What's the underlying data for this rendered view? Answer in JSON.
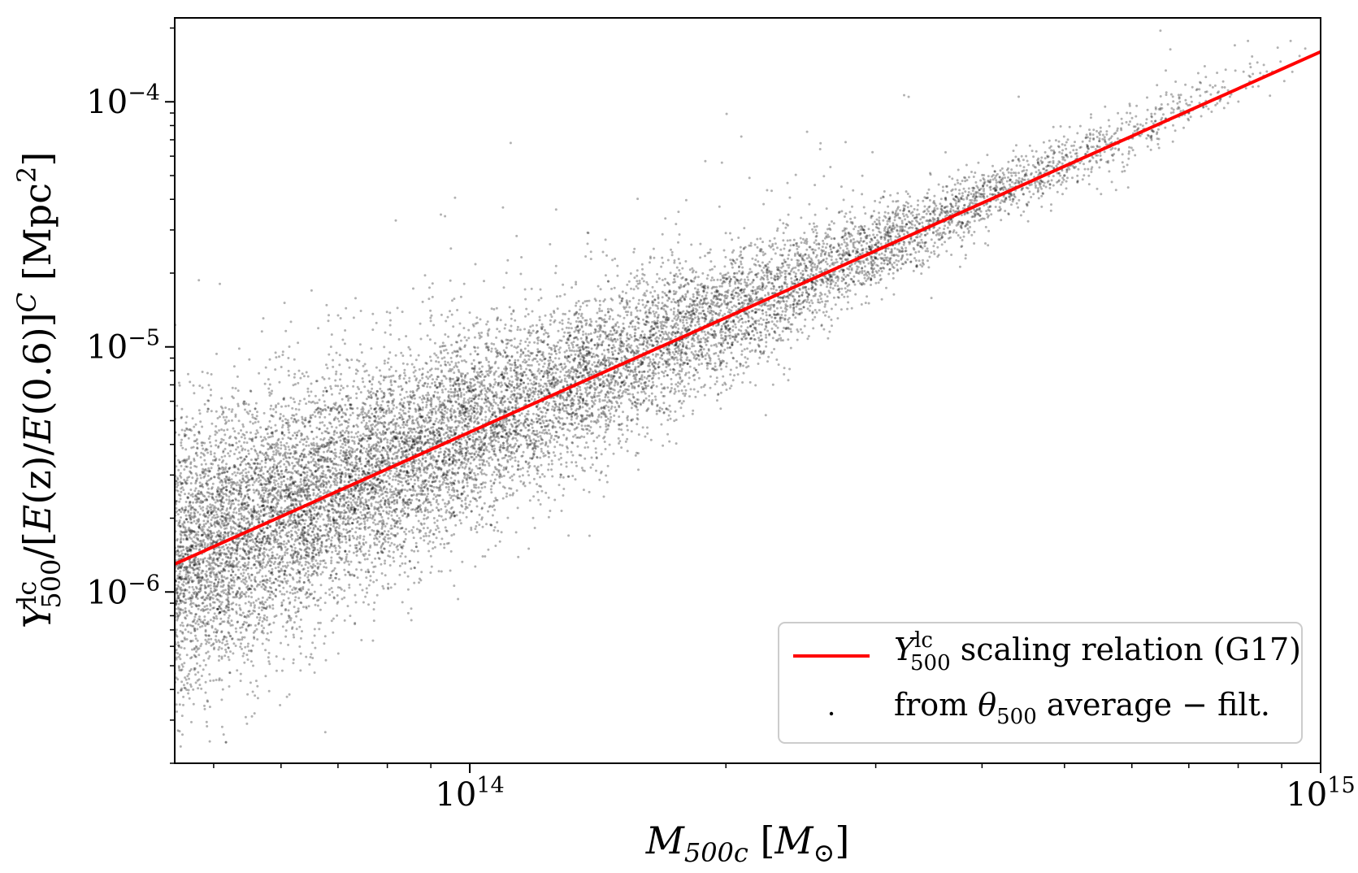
{
  "chart_data": {
    "type": "scatter",
    "xlabel": "M500c [M⊙]",
    "ylabel": "Y500^lc/[E(z)/E(0.6)]^C [Mpc^2]",
    "xscale": "log",
    "yscale": "log",
    "xlim": [
      45000000000000.0,
      1000000000000000.0
    ],
    "ylim": [
      2e-07,
      0.00022
    ],
    "x_ticks": [
      {
        "value": 100000000000000.0,
        "base": "10",
        "exp": "14"
      },
      {
        "value": 1000000000000000.0,
        "base": "10",
        "exp": "15"
      }
    ],
    "y_ticks": [
      {
        "value": 1e-06,
        "base": "10",
        "exp": "−6"
      },
      {
        "value": 1e-05,
        "base": "10",
        "exp": "−5"
      },
      {
        "value": 0.0001,
        "base": "10",
        "exp": "−4"
      }
    ],
    "grid": false,
    "legend_position": "lower right",
    "series": [
      {
        "name": "Y500^lc scaling relation (G17)",
        "kind": "line",
        "color": "#ff0000",
        "points": [
          [
            45000000000000.0,
            1.3e-06
          ],
          [
            1000000000000000.0,
            0.00016
          ]
        ]
      },
      {
        "name": "from θ500 average − filt.",
        "kind": "scatter",
        "color": "#000000",
        "trend": {
          "logx_ref": 14.0,
          "logy_ref": -5.34,
          "slope": 1.56
        },
        "scatter_dex": {
          "low_mass": 0.28,
          "high_mass": 0.06
        },
        "note_density": "dense at low mass, sparse at high mass",
        "sample_points": [
          [
            50000000000000.0,
            1.6e-06
          ],
          [
            70000000000000.0,
            2.5e-06
          ],
          [
            100000000000000.0,
            4.2e-06
          ],
          [
            150000000000000.0,
            7.5e-06
          ],
          [
            200000000000000.0,
            1.2e-05
          ],
          [
            300000000000000.0,
            2.3e-05
          ],
          [
            500000000000000.0,
            5e-05
          ],
          [
            700000000000000.0,
            9e-05
          ],
          [
            960000000000000.0,
            0.00015
          ]
        ]
      }
    ],
    "legend": {
      "line_label_main": "Y",
      "line_label_sup": "lc",
      "line_label_sub": "500",
      "line_label_rest": " scaling relation (G17)",
      "scatter_label_pre": "from ",
      "scatter_label_theta": "θ",
      "scatter_label_sub": "500",
      "scatter_label_rest": " average − filt."
    },
    "axis_text": {
      "x_main": "M",
      "x_sub": "500c",
      "x_unit_open": " [",
      "x_unit": "M",
      "x_unit_sub": "⊙",
      "x_unit_close": "]",
      "y_main": "Y",
      "y_sup": "lc",
      "y_sub": "500",
      "y_mid": "/[",
      "y_E1": "E",
      "y_z": "(z)/",
      "y_E2": "E",
      "y_06": "(0.6)]",
      "y_C": "C",
      "y_unit": " [Mpc",
      "y_unit_sup": "2",
      "y_unit_close": "]"
    }
  }
}
